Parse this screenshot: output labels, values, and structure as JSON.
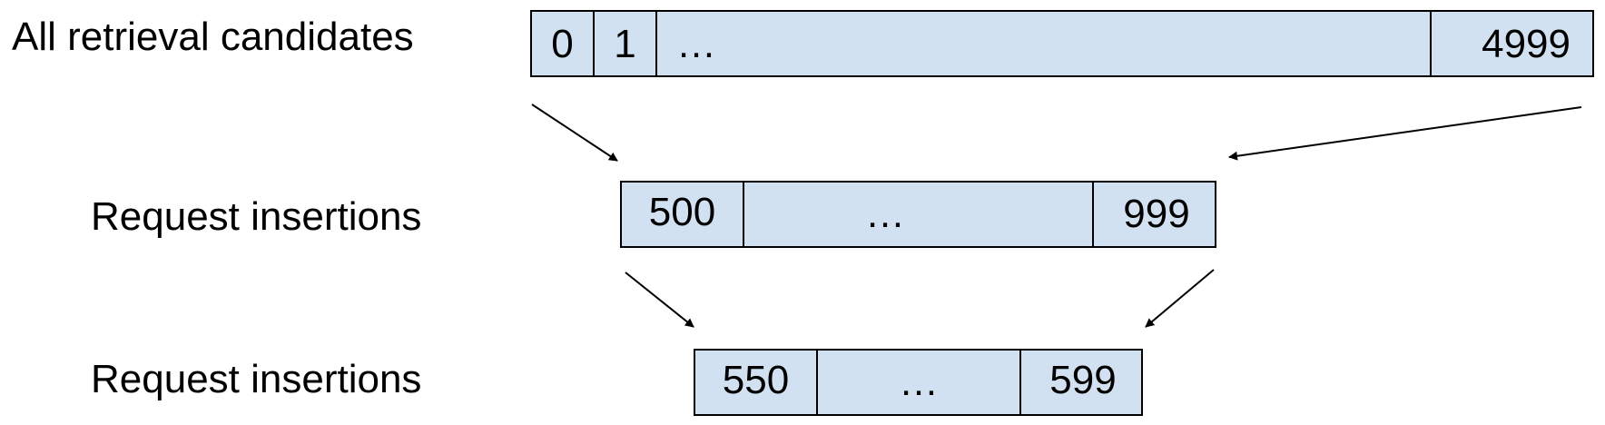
{
  "rows": [
    {
      "label": "All retrieval candidates",
      "cells": [
        {
          "text": "0"
        },
        {
          "text": "1"
        },
        {
          "text": "…"
        },
        {
          "text": "4999"
        }
      ]
    },
    {
      "label": "Request insertions",
      "cells": [
        {
          "text": "500"
        },
        {
          "text": "…"
        },
        {
          "text": "999"
        }
      ]
    },
    {
      "label": "Request insertions",
      "cells": [
        {
          "text": "550"
        },
        {
          "text": "…"
        },
        {
          "text": "599"
        }
      ]
    }
  ],
  "colors": {
    "cell_fill": "#d2e1f1",
    "stroke": "#000000",
    "text": "#000000",
    "background": "#ffffff"
  }
}
